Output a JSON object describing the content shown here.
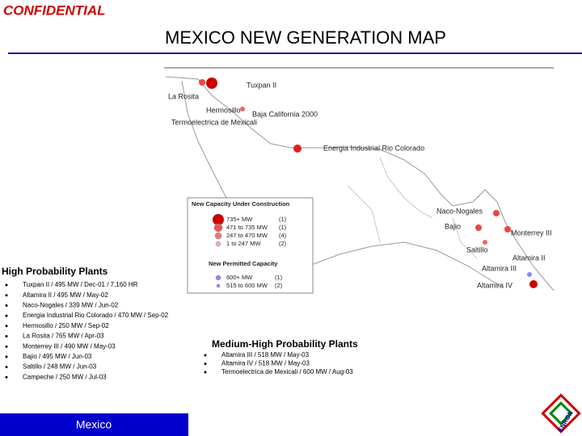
{
  "header": {
    "confidential": "CONFIDENTIAL",
    "title": "MEXICO NEW GENERATION MAP"
  },
  "map": {
    "labels": [
      "Tuxpan II",
      "La Rosita",
      "Hermosillo",
      "Baja California 2000",
      "Termoelectrica de Mexicali",
      "Energia Industrial Rio Colorado",
      "Naco-Nogales",
      "Bajio",
      "Monterrey III",
      "Saltillo",
      "Altamira II",
      "Altamira III",
      "Altamira IV"
    ]
  },
  "legend": {
    "construction_title": "New Capacity Under Construction",
    "construction_rows": [
      [
        "735+ MW",
        "(1)"
      ],
      [
        "471 to 735 MW",
        "(1)"
      ],
      [
        "247 to 470 MW",
        "(4)"
      ],
      [
        "1 to 247 MW",
        "(2)"
      ]
    ],
    "permitted_title": "New Permitted Capacity",
    "permitted_rows": [
      [
        "600+ MW",
        "(1)"
      ],
      [
        "515 to 600 MW",
        "(2)"
      ]
    ]
  },
  "high_probability": {
    "title": "High Probability Plants",
    "items": [
      "Tuxpan II / 495 MW / Dec-01 / 7,160 HR",
      "Altamira II / 495 MW / May-02",
      "Naco-Nogales / 339 MW / Jun-02",
      "Energia Industrial Rio Colorado / 470 MW / Sep-02",
      "Hermosillo / 250 MW / Sep-02",
      "La Rosita / 765 MW / Apr-03",
      "Monterrey III / 490 MW / May-03",
      "Bajio / 495 MW / Jun-03",
      "Saltillo / 248 MW / Jun-03",
      "Campeche / 250 MW / Jul-03"
    ]
  },
  "medium_high_probability": {
    "title": "Medium-High Probability Plants",
    "items": [
      "Altamira III / 518 MW / May-03",
      "Altamira IV / 518 MW / May-03",
      "Termoelectrica de Mexicali / 600 MW / Aug-03"
    ]
  },
  "footer": {
    "label": "Mexico",
    "logo": "ENRON"
  }
}
